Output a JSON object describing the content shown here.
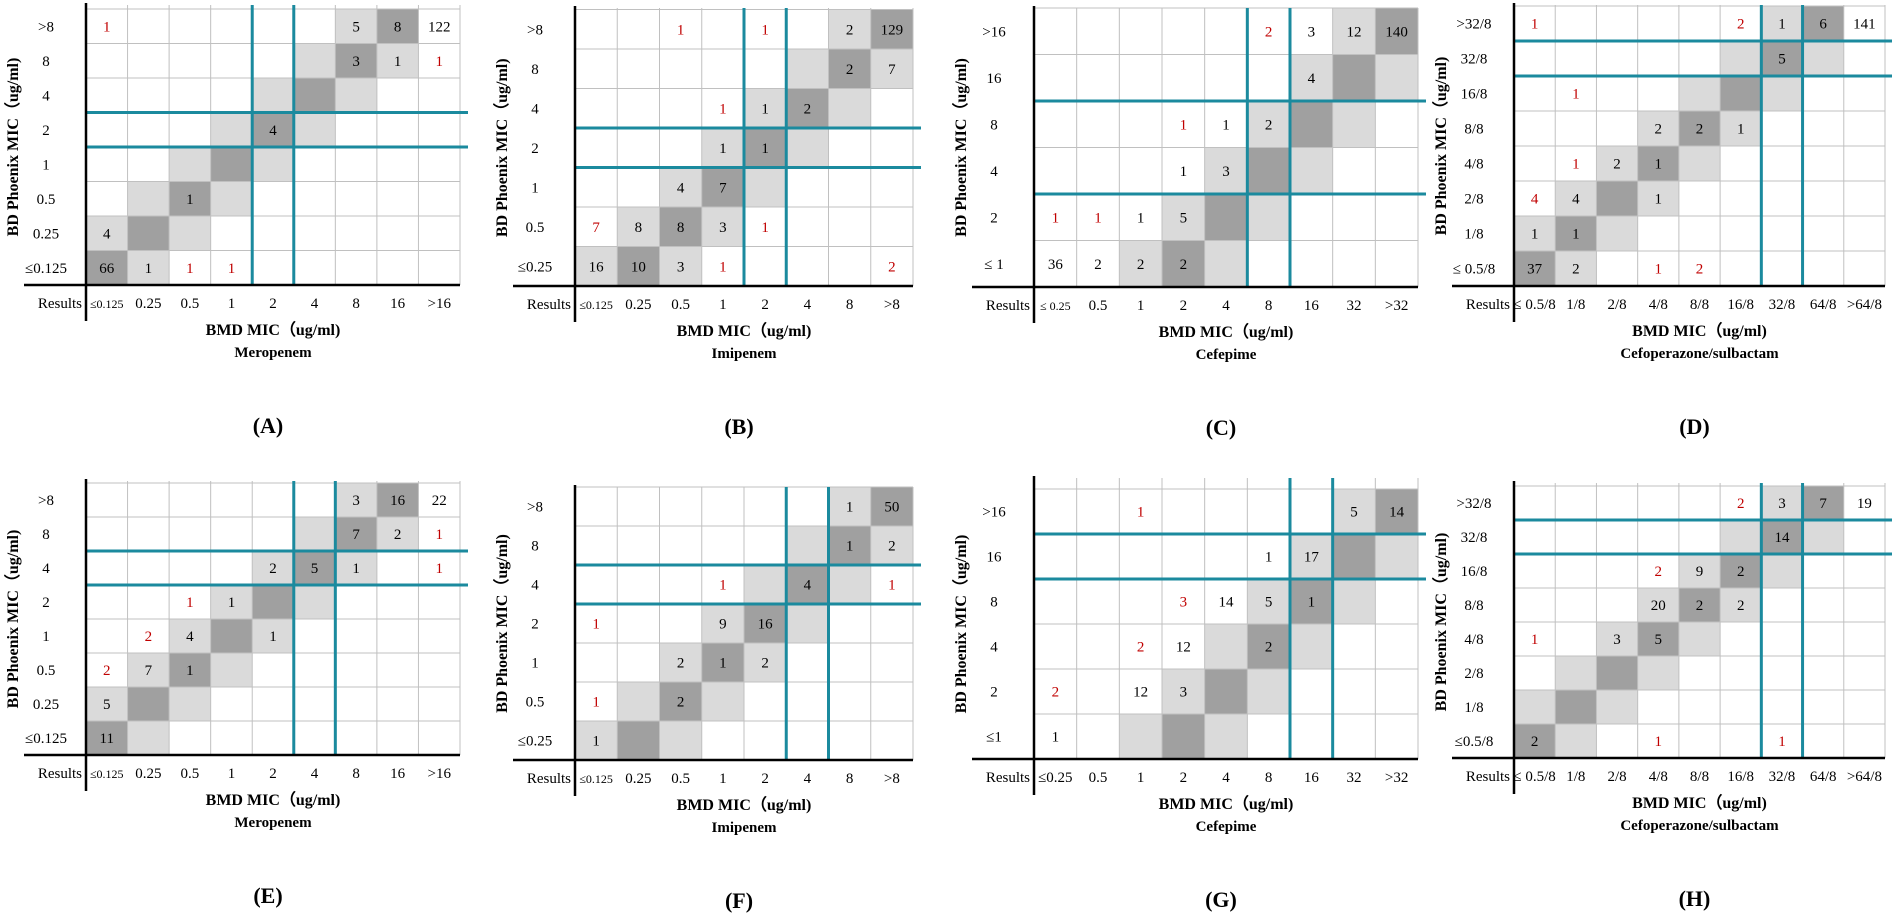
{
  "colors": {
    "grid": "#c0c0c0",
    "diag": "#a0a0a0",
    "offdiag": "#dadada",
    "breakpoint": "#1b8a9e",
    "count_black": "#000000",
    "count_red": "#c00000",
    "axis": "#000000"
  },
  "chart_data": [
    {
      "type": "table",
      "panel": "A",
      "letter": "(A)",
      "drug": "Meropenem",
      "xlabel": "BMD MIC（ug/ml)",
      "ylabel": "BD Phoenix MIC（ug/ml)",
      "corner": "Results",
      "x_labels": [
        "≤0.125",
        "0.25",
        "0.5",
        "1",
        "2",
        "4",
        "8",
        "16",
        ">16"
      ],
      "y_labels": [
        ">8",
        "8",
        "4",
        "2",
        "1",
        "0.5",
        "0.25",
        "≤0.125"
      ],
      "diag_offset": 0,
      "diag_cap": 7,
      "vlines": [
        4,
        5
      ],
      "hlines": [
        3,
        4
      ],
      "cells": [
        {
          "r": 0,
          "c": 0,
          "v": "1",
          "red": true
        },
        {
          "r": 0,
          "c": 6,
          "v": "5"
        },
        {
          "r": 0,
          "c": 7,
          "v": "8"
        },
        {
          "r": 0,
          "c": 8,
          "v": "122"
        },
        {
          "r": 1,
          "c": 6,
          "v": "3"
        },
        {
          "r": 1,
          "c": 7,
          "v": "1"
        },
        {
          "r": 1,
          "c": 8,
          "v": "1",
          "red": true
        },
        {
          "r": 3,
          "c": 4,
          "v": "4"
        },
        {
          "r": 5,
          "c": 2,
          "v": "1"
        },
        {
          "r": 6,
          "c": 0,
          "v": "4"
        },
        {
          "r": 7,
          "c": 0,
          "v": "66"
        },
        {
          "r": 7,
          "c": 1,
          "v": "1"
        },
        {
          "r": 7,
          "c": 2,
          "v": "1",
          "red": true
        },
        {
          "r": 7,
          "c": 3,
          "v": "1",
          "red": true
        }
      ]
    },
    {
      "type": "table",
      "panel": "B",
      "letter": "(B)",
      "drug": "Imipenem",
      "xlabel": "BMD MIC（ug/ml)",
      "ylabel": "BD Phoenix MIC（ug/ml)",
      "corner": "Results",
      "x_labels": [
        "≤0.125",
        "0.25",
        "0.5",
        "1",
        "2",
        "4",
        "8",
        ">8"
      ],
      "y_labels": [
        ">8",
        "8",
        "4",
        "2",
        "1",
        "0.5",
        "≤0.25"
      ],
      "diag_offset": 1,
      "diag_cap": 7,
      "vlines": [
        4,
        5
      ],
      "hlines": [
        3,
        4
      ],
      "cells": [
        {
          "r": 0,
          "c": 2,
          "v": "1",
          "red": true
        },
        {
          "r": 0,
          "c": 4,
          "v": "1",
          "red": true
        },
        {
          "r": 0,
          "c": 6,
          "v": "2"
        },
        {
          "r": 0,
          "c": 7,
          "v": "129"
        },
        {
          "r": 1,
          "c": 6,
          "v": "2"
        },
        {
          "r": 1,
          "c": 7,
          "v": "7"
        },
        {
          "r": 2,
          "c": 3,
          "v": "1",
          "red": true
        },
        {
          "r": 2,
          "c": 4,
          "v": "1"
        },
        {
          "r": 2,
          "c": 5,
          "v": "2"
        },
        {
          "r": 3,
          "c": 3,
          "v": "1"
        },
        {
          "r": 3,
          "c": 4,
          "v": "1"
        },
        {
          "r": 4,
          "c": 2,
          "v": "4"
        },
        {
          "r": 4,
          "c": 3,
          "v": "7"
        },
        {
          "r": 5,
          "c": 0,
          "v": "7",
          "red": true
        },
        {
          "r": 5,
          "c": 1,
          "v": "8"
        },
        {
          "r": 5,
          "c": 2,
          "v": "8"
        },
        {
          "r": 5,
          "c": 3,
          "v": "3"
        },
        {
          "r": 5,
          "c": 4,
          "v": "1",
          "red": true
        },
        {
          "r": 6,
          "c": 0,
          "v": "16"
        },
        {
          "r": 6,
          "c": 1,
          "v": "10"
        },
        {
          "r": 6,
          "c": 2,
          "v": "3"
        },
        {
          "r": 6,
          "c": 3,
          "v": "1",
          "red": true
        },
        {
          "r": 6,
          "c": 7,
          "v": "2",
          "red": true
        }
      ]
    },
    {
      "type": "table",
      "panel": "C",
      "letter": "(C)",
      "drug": "Cefepime",
      "xlabel": "BMD MIC（ug/ml)",
      "ylabel": "BD Phoenix MIC（ug/ml)",
      "corner": "Results",
      "x_labels": [
        "≤ 0.25",
        "0.5",
        "1",
        "2",
        "4",
        "8",
        "16",
        "32",
        ">32"
      ],
      "y_labels": [
        ">16",
        "16",
        "8",
        "4",
        "2",
        "≤ 1"
      ],
      "diag_offset": 3,
      "diag_cap": 8,
      "vlines": [
        5,
        6
      ],
      "hlines": [
        2,
        4
      ],
      "cells": [
        {
          "r": 0,
          "c": 5,
          "v": "2",
          "red": true
        },
        {
          "r": 0,
          "c": 6,
          "v": "3"
        },
        {
          "r": 0,
          "c": 7,
          "v": "12"
        },
        {
          "r": 0,
          "c": 8,
          "v": "140"
        },
        {
          "r": 1,
          "c": 6,
          "v": "4"
        },
        {
          "r": 2,
          "c": 3,
          "v": "1",
          "red": true
        },
        {
          "r": 2,
          "c": 4,
          "v": "1"
        },
        {
          "r": 2,
          "c": 5,
          "v": "2"
        },
        {
          "r": 3,
          "c": 3,
          "v": "1"
        },
        {
          "r": 3,
          "c": 4,
          "v": "3"
        },
        {
          "r": 4,
          "c": 0,
          "v": "1",
          "red": true
        },
        {
          "r": 4,
          "c": 1,
          "v": "1",
          "red": true
        },
        {
          "r": 4,
          "c": 2,
          "v": "1"
        },
        {
          "r": 4,
          "c": 3,
          "v": "5"
        },
        {
          "r": 5,
          "c": 0,
          "v": "36"
        },
        {
          "r": 5,
          "c": 1,
          "v": "2"
        },
        {
          "r": 5,
          "c": 2,
          "v": "2"
        },
        {
          "r": 5,
          "c": 3,
          "v": "2"
        }
      ]
    },
    {
      "type": "table",
      "panel": "D",
      "letter": "(D)",
      "drug": "Cefoperazone/sulbactam",
      "xlabel": "BMD MIC（ug/ml)",
      "ylabel": "BD Phoenix MIC（ug/ml)",
      "corner": "Results",
      "x_labels": [
        "≤ 0.5/8",
        "1/8",
        "2/8",
        "4/8",
        "8/8",
        "16/8",
        "32/8",
        "64/8",
        ">64/8"
      ],
      "y_labels": [
        ">32/8",
        "32/8",
        "16/8",
        "8/8",
        "4/8",
        "2/8",
        "1/8",
        "≤ 0.5/8"
      ],
      "diag_offset": 0,
      "diag_cap": 7,
      "vlines": [
        6,
        7
      ],
      "hlines": [
        1,
        2
      ],
      "cells": [
        {
          "r": 0,
          "c": 0,
          "v": "1",
          "red": true
        },
        {
          "r": 0,
          "c": 5,
          "v": "2",
          "red": true
        },
        {
          "r": 0,
          "c": 6,
          "v": "1"
        },
        {
          "r": 0,
          "c": 7,
          "v": "6"
        },
        {
          "r": 0,
          "c": 8,
          "v": "141"
        },
        {
          "r": 1,
          "c": 6,
          "v": "5"
        },
        {
          "r": 2,
          "c": 1,
          "v": "1",
          "red": true
        },
        {
          "r": 3,
          "c": 3,
          "v": "2"
        },
        {
          "r": 3,
          "c": 4,
          "v": "2"
        },
        {
          "r": 3,
          "c": 5,
          "v": "1"
        },
        {
          "r": 4,
          "c": 1,
          "v": "1",
          "red": true
        },
        {
          "r": 4,
          "c": 2,
          "v": "2"
        },
        {
          "r": 4,
          "c": 3,
          "v": "1"
        },
        {
          "r": 5,
          "c": 0,
          "v": "4",
          "red": true
        },
        {
          "r": 5,
          "c": 1,
          "v": "4"
        },
        {
          "r": 5,
          "c": 3,
          "v": "1"
        },
        {
          "r": 6,
          "c": 0,
          "v": "1"
        },
        {
          "r": 6,
          "c": 1,
          "v": "1"
        },
        {
          "r": 7,
          "c": 0,
          "v": "37"
        },
        {
          "r": 7,
          "c": 1,
          "v": "2"
        },
        {
          "r": 7,
          "c": 3,
          "v": "1",
          "red": true
        },
        {
          "r": 7,
          "c": 4,
          "v": "2",
          "red": true
        }
      ]
    },
    {
      "type": "table",
      "panel": "E",
      "letter": "(E)",
      "drug": "Meropenem",
      "xlabel": "BMD MIC（ug/ml)",
      "ylabel": "BD Phoenix MIC（ug/ml)",
      "corner": "Results",
      "x_labels": [
        "≤0.125",
        "0.25",
        "0.5",
        "1",
        "2",
        "4",
        "8",
        "16",
        ">16"
      ],
      "y_labels": [
        ">8",
        "8",
        "4",
        "2",
        "1",
        "0.5",
        "0.25",
        "≤0.125"
      ],
      "diag_offset": 0,
      "diag_cap": 7,
      "vlines": [
        5,
        6
      ],
      "hlines": [
        2,
        3
      ],
      "cells": [
        {
          "r": 0,
          "c": 6,
          "v": "3"
        },
        {
          "r": 0,
          "c": 7,
          "v": "16"
        },
        {
          "r": 0,
          "c": 8,
          "v": "22"
        },
        {
          "r": 1,
          "c": 6,
          "v": "7"
        },
        {
          "r": 1,
          "c": 7,
          "v": "2"
        },
        {
          "r": 1,
          "c": 8,
          "v": "1",
          "red": true
        },
        {
          "r": 2,
          "c": 4,
          "v": "2"
        },
        {
          "r": 2,
          "c": 5,
          "v": "5"
        },
        {
          "r": 2,
          "c": 6,
          "v": "1"
        },
        {
          "r": 2,
          "c": 8,
          "v": "1",
          "red": true
        },
        {
          "r": 3,
          "c": 2,
          "v": "1",
          "red": true
        },
        {
          "r": 3,
          "c": 3,
          "v": "1"
        },
        {
          "r": 4,
          "c": 1,
          "v": "2",
          "red": true
        },
        {
          "r": 4,
          "c": 2,
          "v": "4"
        },
        {
          "r": 4,
          "c": 4,
          "v": "1"
        },
        {
          "r": 5,
          "c": 0,
          "v": "2",
          "red": true
        },
        {
          "r": 5,
          "c": 1,
          "v": "7"
        },
        {
          "r": 5,
          "c": 2,
          "v": "1"
        },
        {
          "r": 6,
          "c": 0,
          "v": "5"
        },
        {
          "r": 7,
          "c": 0,
          "v": "11"
        }
      ]
    },
    {
      "type": "table",
      "panel": "F",
      "letter": "(F)",
      "drug": "Imipenem",
      "xlabel": "BMD MIC（ug/ml)",
      "ylabel": "BD Phoenix MIC（ug/ml)",
      "corner": "Results",
      "x_labels": [
        "≤0.125",
        "0.25",
        "0.5",
        "1",
        "2",
        "4",
        "8",
        ">8"
      ],
      "y_labels": [
        ">8",
        "8",
        "4",
        "2",
        "1",
        "0.5",
        "≤0.25"
      ],
      "diag_offset": 1,
      "diag_cap": 7,
      "vlines": [
        5,
        6
      ],
      "hlines": [
        2,
        3
      ],
      "cells": [
        {
          "r": 0,
          "c": 6,
          "v": "1"
        },
        {
          "r": 0,
          "c": 7,
          "v": "50"
        },
        {
          "r": 1,
          "c": 6,
          "v": "1"
        },
        {
          "r": 1,
          "c": 7,
          "v": "2"
        },
        {
          "r": 2,
          "c": 3,
          "v": "1",
          "red": true
        },
        {
          "r": 2,
          "c": 5,
          "v": "4"
        },
        {
          "r": 2,
          "c": 7,
          "v": "1",
          "red": true
        },
        {
          "r": 3,
          "c": 0,
          "v": "1",
          "red": true
        },
        {
          "r": 3,
          "c": 3,
          "v": "9"
        },
        {
          "r": 3,
          "c": 4,
          "v": "16"
        },
        {
          "r": 4,
          "c": 2,
          "v": "2"
        },
        {
          "r": 4,
          "c": 3,
          "v": "1"
        },
        {
          "r": 4,
          "c": 4,
          "v": "2"
        },
        {
          "r": 5,
          "c": 0,
          "v": "1",
          "red": true
        },
        {
          "r": 5,
          "c": 2,
          "v": "2"
        },
        {
          "r": 6,
          "c": 0,
          "v": "1"
        }
      ]
    },
    {
      "type": "table",
      "panel": "G",
      "letter": "(G)",
      "drug": "Cefepime",
      "xlabel": "BMD MIC（ug/ml)",
      "ylabel": "BD Phoenix MIC（ug/ml)",
      "corner": "Results",
      "x_labels": [
        "≤0.25",
        "0.5",
        "1",
        "2",
        "4",
        "8",
        "16",
        "32",
        ">32"
      ],
      "y_labels": [
        ">16",
        "16",
        "8",
        "4",
        "2",
        "≤1"
      ],
      "diag_offset": 3,
      "diag_cap": 8,
      "vlines": [
        6,
        7
      ],
      "hlines": [
        1,
        2
      ],
      "cells": [
        {
          "r": 0,
          "c": 2,
          "v": "1",
          "red": true
        },
        {
          "r": 0,
          "c": 7,
          "v": "5"
        },
        {
          "r": 0,
          "c": 8,
          "v": "14"
        },
        {
          "r": 1,
          "c": 5,
          "v": "1"
        },
        {
          "r": 1,
          "c": 6,
          "v": "17"
        },
        {
          "r": 2,
          "c": 3,
          "v": "3",
          "red": true
        },
        {
          "r": 2,
          "c": 4,
          "v": "14"
        },
        {
          "r": 2,
          "c": 5,
          "v": "5"
        },
        {
          "r": 2,
          "c": 6,
          "v": "1"
        },
        {
          "r": 3,
          "c": 2,
          "v": "2",
          "red": true
        },
        {
          "r": 3,
          "c": 3,
          "v": "12"
        },
        {
          "r": 3,
          "c": 5,
          "v": "2"
        },
        {
          "r": 4,
          "c": 0,
          "v": "2",
          "red": true
        },
        {
          "r": 4,
          "c": 2,
          "v": "12"
        },
        {
          "r": 4,
          "c": 3,
          "v": "3"
        },
        {
          "r": 5,
          "c": 0,
          "v": "1"
        }
      ]
    },
    {
      "type": "table",
      "panel": "H",
      "letter": "(H)",
      "drug": "Cefoperazone/sulbactam",
      "xlabel": "BMD MIC（ug/ml)",
      "ylabel": "BD Phoenix MIC（ug/ml)",
      "corner": "Results",
      "x_labels": [
        "≤ 0.5/8",
        "1/8",
        "2/8",
        "4/8",
        "8/8",
        "16/8",
        "32/8",
        "64/8",
        ">64/8"
      ],
      "y_labels": [
        ">32/8",
        "32/8",
        "16/8",
        "8/8",
        "4/8",
        "2/8",
        "1/8",
        "≤0.5/8"
      ],
      "diag_offset": 0,
      "diag_cap": 7,
      "vlines": [
        6,
        7
      ],
      "hlines": [
        1,
        2
      ],
      "cells": [
        {
          "r": 0,
          "c": 5,
          "v": "2",
          "red": true
        },
        {
          "r": 0,
          "c": 6,
          "v": "3"
        },
        {
          "r": 0,
          "c": 7,
          "v": "7"
        },
        {
          "r": 0,
          "c": 8,
          "v": "19"
        },
        {
          "r": 1,
          "c": 6,
          "v": "14"
        },
        {
          "r": 2,
          "c": 3,
          "v": "2",
          "red": true
        },
        {
          "r": 2,
          "c": 4,
          "v": "9"
        },
        {
          "r": 2,
          "c": 5,
          "v": "2"
        },
        {
          "r": 3,
          "c": 3,
          "v": "20"
        },
        {
          "r": 3,
          "c": 4,
          "v": "2"
        },
        {
          "r": 3,
          "c": 5,
          "v": "2"
        },
        {
          "r": 4,
          "c": 0,
          "v": "1",
          "red": true
        },
        {
          "r": 4,
          "c": 2,
          "v": "3"
        },
        {
          "r": 4,
          "c": 3,
          "v": "5"
        },
        {
          "r": 7,
          "c": 0,
          "v": "2"
        },
        {
          "r": 7,
          "c": 3,
          "v": "1",
          "red": true
        },
        {
          "r": 7,
          "c": 6,
          "v": "1",
          "red": true
        }
      ]
    }
  ]
}
